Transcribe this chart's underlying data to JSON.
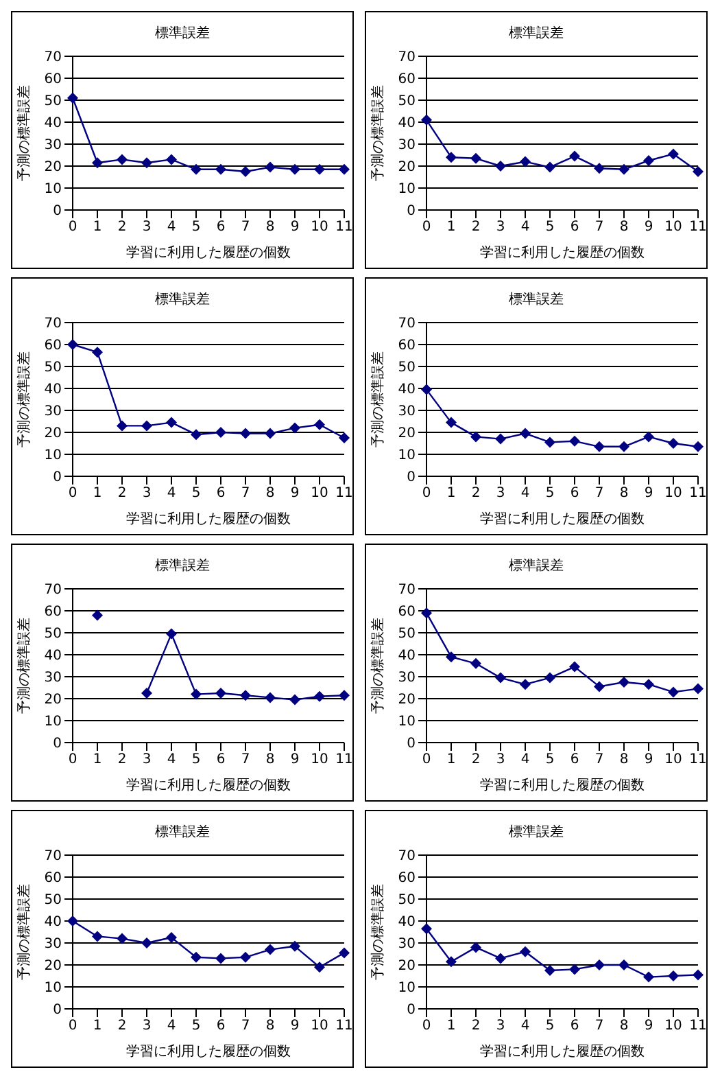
{
  "chart_data": [
    {
      "type": "line",
      "title": "標準誤差",
      "xlabel": "学習に利用した履歴の個数",
      "ylabel": "予測の標準誤差",
      "categories": [
        "0",
        "1",
        "2",
        "3",
        "4",
        "5",
        "6",
        "7",
        "8",
        "9",
        "10",
        "11"
      ],
      "ylim": [
        0,
        70
      ],
      "yticks": [
        0,
        10,
        20,
        30,
        40,
        50,
        60,
        70
      ],
      "grid": "y",
      "marker": "diamond",
      "line_style": "solid",
      "series": [
        {
          "color": "#000080",
          "values": [
            51,
            21.5,
            23,
            21.5,
            23,
            18.5,
            18.5,
            17.5,
            19.5,
            18.5,
            18.5,
            18.5
          ]
        }
      ]
    },
    {
      "type": "line",
      "title": "標準誤差",
      "xlabel": "学習に利用した履歴の個数",
      "ylabel": "予測の標準誤差",
      "categories": [
        "0",
        "1",
        "2",
        "3",
        "4",
        "5",
        "6",
        "7",
        "8",
        "9",
        "10",
        "11"
      ],
      "ylim": [
        0,
        70
      ],
      "yticks": [
        0,
        10,
        20,
        30,
        40,
        50,
        60,
        70
      ],
      "grid": "y",
      "marker": "diamond",
      "line_style": "solid",
      "series": [
        {
          "color": "#000080",
          "values": [
            41,
            24,
            23.5,
            20,
            22,
            19.5,
            24.5,
            19,
            18.5,
            22.5,
            25.5,
            17.5
          ]
        }
      ]
    },
    {
      "type": "line",
      "title": "標準誤差",
      "xlabel": "学習に利用した履歴の個数",
      "ylabel": "予測の標準誤差",
      "categories": [
        "0",
        "1",
        "2",
        "3",
        "4",
        "5",
        "6",
        "7",
        "8",
        "9",
        "10",
        "11"
      ],
      "ylim": [
        0,
        70
      ],
      "yticks": [
        0,
        10,
        20,
        30,
        40,
        50,
        60,
        70
      ],
      "grid": "y",
      "marker": "diamond",
      "line_style": "solid",
      "series": [
        {
          "color": "#000080",
          "values": [
            60,
            56.5,
            23,
            23,
            24.5,
            19,
            20,
            19.5,
            19.5,
            22,
            23.5,
            17.5
          ]
        }
      ]
    },
    {
      "type": "line",
      "title": "標準誤差",
      "xlabel": "学習に利用した履歴の個数",
      "ylabel": "予測の標準誤差",
      "categories": [
        "0",
        "1",
        "2",
        "3",
        "4",
        "5",
        "6",
        "7",
        "8",
        "9",
        "10",
        "11"
      ],
      "ylim": [
        0,
        70
      ],
      "yticks": [
        0,
        10,
        20,
        30,
        40,
        50,
        60,
        70
      ],
      "grid": "y",
      "marker": "diamond",
      "line_style": "solid",
      "series": [
        {
          "color": "#000080",
          "values": [
            39.5,
            24.5,
            18,
            17,
            19.5,
            15.5,
            16,
            13.5,
            13.5,
            18,
            15,
            13.5
          ]
        }
      ]
    },
    {
      "type": "line",
      "title": "標準誤差",
      "xlabel": "学習に利用した履歴の個数",
      "ylabel": "予測の標準誤差",
      "categories": [
        "0",
        "1",
        "2",
        "3",
        "4",
        "5",
        "6",
        "7",
        "8",
        "9",
        "10",
        "11"
      ],
      "ylim": [
        0,
        70
      ],
      "yticks": [
        0,
        10,
        20,
        30,
        40,
        50,
        60,
        70
      ],
      "grid": "y",
      "marker": "diamond",
      "line_style": "solid",
      "series": [
        {
          "color": "#000080",
          "values": [
            null,
            58,
            null,
            22.5,
            49.5,
            22,
            22.5,
            21.5,
            20.5,
            19.5,
            21,
            21.5
          ]
        }
      ]
    },
    {
      "type": "line",
      "title": "標準誤差",
      "xlabel": "学習に利用した履歴の個数",
      "ylabel": "予測の標準誤差",
      "categories": [
        "0",
        "1",
        "2",
        "3",
        "4",
        "5",
        "6",
        "7",
        "8",
        "9",
        "10",
        "11"
      ],
      "ylim": [
        0,
        70
      ],
      "yticks": [
        0,
        10,
        20,
        30,
        40,
        50,
        60,
        70
      ],
      "grid": "y",
      "marker": "diamond",
      "line_style": "solid",
      "series": [
        {
          "color": "#000080",
          "values": [
            59,
            39,
            36,
            29.5,
            26.5,
            29.5,
            34.5,
            25.5,
            27.5,
            26.5,
            23,
            24.5
          ]
        }
      ]
    },
    {
      "type": "line",
      "title": "標準誤差",
      "xlabel": "学習に利用した履歴の個数",
      "ylabel": "予測の標準誤差",
      "categories": [
        "0",
        "1",
        "2",
        "3",
        "4",
        "5",
        "6",
        "7",
        "8",
        "9",
        "10",
        "11"
      ],
      "ylim": [
        0,
        70
      ],
      "yticks": [
        0,
        10,
        20,
        30,
        40,
        50,
        60,
        70
      ],
      "grid": "y",
      "marker": "diamond",
      "line_style": "solid",
      "series": [
        {
          "color": "#000080",
          "values": [
            40,
            33,
            32,
            30,
            32.5,
            23.5,
            23,
            23.5,
            27,
            28.5,
            19,
            25.5
          ]
        }
      ]
    },
    {
      "type": "line",
      "title": "標準誤差",
      "xlabel": "学習に利用した履歴の個数",
      "ylabel": "予測の標準誤差",
      "categories": [
        "0",
        "1",
        "2",
        "3",
        "4",
        "5",
        "6",
        "7",
        "8",
        "9",
        "10",
        "11"
      ],
      "ylim": [
        0,
        70
      ],
      "yticks": [
        0,
        10,
        20,
        30,
        40,
        50,
        60,
        70
      ],
      "grid": "y",
      "marker": "diamond",
      "line_style": "solid",
      "series": [
        {
          "color": "#000080",
          "values": [
            36.5,
            21.5,
            28,
            23,
            26,
            17.5,
            18,
            20,
            20,
            14.5,
            15,
            15.5
          ]
        }
      ]
    }
  ]
}
